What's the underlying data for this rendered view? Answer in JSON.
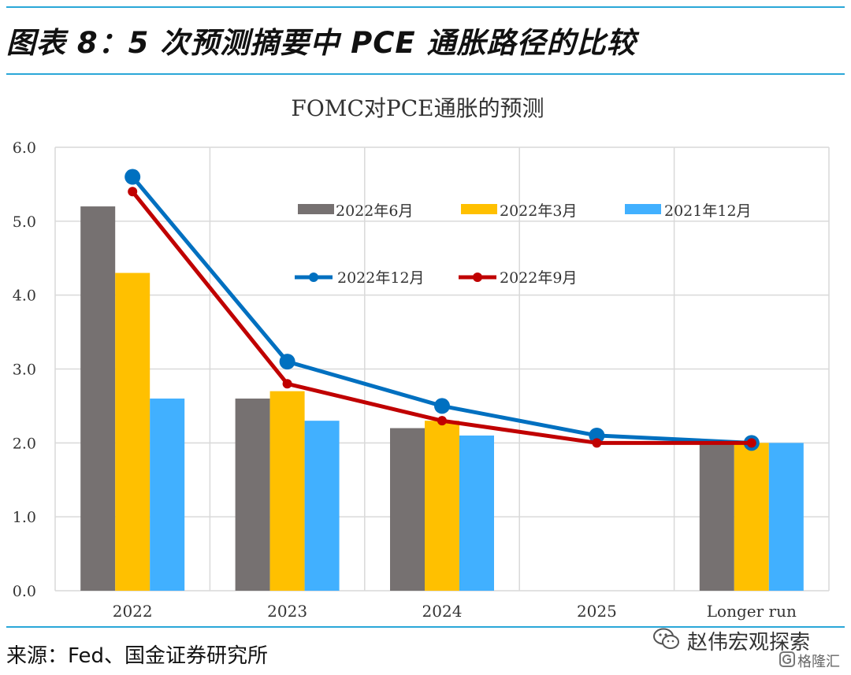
{
  "header": {
    "figure_title": "图表 8：5 次预测摘要中 PCE 通胀路径的比较"
  },
  "footer": {
    "source": "来源：Fed、国金证券研究所"
  },
  "watermark": {
    "main": "赵伟宏观探索",
    "sub": "格隆汇"
  },
  "chart_data": {
    "type": "bar",
    "title": "FOMC对PCE通胀的预测",
    "categories": [
      "2022",
      "2023",
      "2024",
      "2025",
      "Longer run"
    ],
    "ylim": [
      0,
      6
    ],
    "yticks": [
      "0.0",
      "1.0",
      "2.0",
      "3.0",
      "4.0",
      "5.0",
      "6.0"
    ],
    "grid": true,
    "legend_position": "top-right",
    "bar_series": [
      {
        "name": "2022年6月",
        "color": "#767171",
        "values": [
          5.2,
          2.6,
          2.2,
          null,
          2.0
        ]
      },
      {
        "name": "2022年3月",
        "color": "#FFC000",
        "values": [
          4.3,
          2.7,
          2.3,
          null,
          2.0
        ]
      },
      {
        "name": "2021年12月",
        "color": "#41B0FF",
        "values": [
          2.6,
          2.3,
          2.1,
          null,
          2.0
        ]
      }
    ],
    "line_series": [
      {
        "name": "2022年12月",
        "color": "#0070C0",
        "values": [
          5.6,
          3.1,
          2.5,
          2.1,
          2.0
        ]
      },
      {
        "name": "2022年9月",
        "color": "#C00000",
        "values": [
          5.4,
          2.8,
          2.3,
          2.0,
          2.0
        ]
      }
    ]
  }
}
